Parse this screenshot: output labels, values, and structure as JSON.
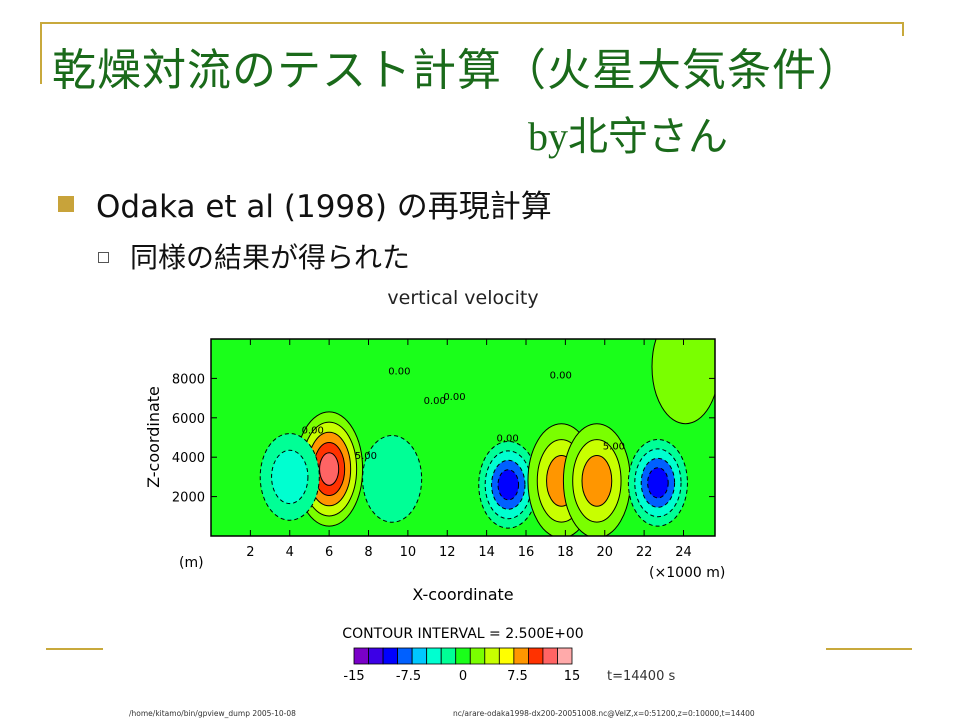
{
  "slide": {
    "title": "乾燥対流のテスト計算（火星大気条件）",
    "byline_by": "by",
    "byline_name": "北守さん",
    "bullet1": "Odaka et al (1998) の再現計算",
    "bullet2": "同様の結果が得られた",
    "accent_color": "#c8a93c",
    "title_color": "#1a6a1a"
  },
  "chart_data": {
    "type": "heatmap",
    "title": "vertical velocity",
    "xlabel": "X-coordinate",
    "ylabel": "Z-coordinate",
    "x_unit_left": "(m)",
    "x_unit_right": "(×1000 m)",
    "xlim": [
      0,
      25.6
    ],
    "ylim": [
      0,
      10000
    ],
    "xticks": [
      "2",
      "4",
      "6",
      "8",
      "10",
      "12",
      "14",
      "16",
      "18",
      "20",
      "22",
      "24"
    ],
    "yticks": [
      "2000",
      "4000",
      "6000",
      "8000"
    ],
    "contour_interval_text": "CONTOUR INTERVAL = 2.500E+00",
    "contour_interval": 2.5,
    "contour_labels": [
      "0.00",
      "0.00",
      "0.00",
      "0.00",
      "0.00",
      "0.00",
      "5.00",
      "5.00"
    ],
    "colorbar": {
      "ticks": [
        "-15",
        "-7.5",
        "0",
        "7.5",
        "15"
      ],
      "range": [
        -15,
        15
      ],
      "colors": [
        "#7a00c8",
        "#3c00e6",
        "#0000ff",
        "#0060ff",
        "#00c8ff",
        "#00ffd0",
        "#00ff96",
        "#1aff1a",
        "#7aff00",
        "#c8ff00",
        "#ffff00",
        "#ff9600",
        "#ff3200",
        "#ff6464",
        "#ffaaaa"
      ]
    },
    "time_label": "t=14400 s",
    "footer_left": "/home/kitamo/bin/gpview_dump   2005-10-08",
    "footer_right": "nc/arare-odaka1998-dx200-20051008.nc@VelZ,x=0:51200,z=0:10000,t=14400",
    "features": [
      {
        "kind": "updraft",
        "x": 6.0,
        "z": 3400,
        "peak": 12.5
      },
      {
        "kind": "downdraft",
        "x": 4.0,
        "z": 3000,
        "peak": -5.0
      },
      {
        "kind": "downdraft",
        "x": 9.2,
        "z": 2900,
        "peak": -4.5
      },
      {
        "kind": "downdraft",
        "x": 15.1,
        "z": 2600,
        "peak": -10.0
      },
      {
        "kind": "updraft",
        "x": 17.8,
        "z": 2800,
        "peak": 7.5
      },
      {
        "kind": "updraft",
        "x": 19.6,
        "z": 2800,
        "peak": 7.5
      },
      {
        "kind": "downdraft",
        "x": 22.7,
        "z": 2700,
        "peak": -11.0
      },
      {
        "kind": "updraft",
        "x": 24.1,
        "z": 8600,
        "peak": 3.0
      }
    ]
  }
}
